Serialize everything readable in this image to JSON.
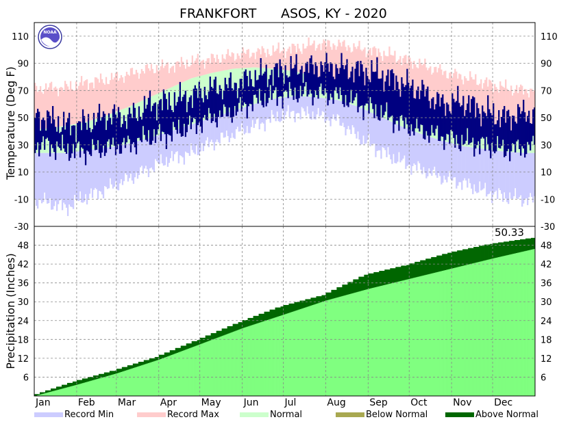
{
  "chart_data": {
    "type": "area",
    "title_station": "FRANKFORT",
    "title_rest": "ASOS, KY - 2020",
    "months": [
      "Jan",
      "Feb",
      "Mar",
      "Apr",
      "May",
      "Jun",
      "Jul",
      "Aug",
      "Sep",
      "Oct",
      "Nov",
      "Dec"
    ],
    "temperature": {
      "ylabel": "Temperature (Deg F)",
      "yticks": [
        110,
        90,
        70,
        50,
        30,
        10,
        -10,
        -30
      ],
      "ylim": [
        -30,
        120
      ],
      "normal_high": [
        42,
        44,
        47,
        52,
        58,
        65,
        72,
        79,
        83,
        86,
        87,
        86,
        84,
        80,
        76,
        70,
        63,
        56,
        50,
        46,
        43,
        41,
        40,
        41
      ],
      "normal_low": [
        24,
        24,
        26,
        28,
        31,
        35,
        40,
        45,
        50,
        55,
        60,
        64,
        66,
        65,
        63,
        58,
        51,
        44,
        38,
        33,
        29,
        27,
        25,
        24
      ],
      "record_max": [
        72,
        72,
        76,
        78,
        82,
        86,
        88,
        91,
        93,
        96,
        98,
        99,
        101,
        104,
        104,
        101,
        98,
        94,
        89,
        84,
        80,
        76,
        72,
        70
      ],
      "record_min": [
        -12,
        -16,
        -8,
        -2,
        5,
        13,
        20,
        24,
        32,
        38,
        44,
        50,
        54,
        52,
        48,
        36,
        26,
        18,
        12,
        6,
        2,
        -4,
        -8,
        -10
      ],
      "observed_high": [
        50,
        44,
        46,
        52,
        50,
        60,
        62,
        66,
        72,
        74,
        80,
        84,
        86,
        88,
        87,
        85,
        82,
        76,
        70,
        60,
        62,
        55,
        50,
        54
      ],
      "observed_low": [
        30,
        26,
        25,
        28,
        30,
        36,
        38,
        44,
        50,
        54,
        62,
        66,
        68,
        68,
        66,
        60,
        54,
        46,
        40,
        36,
        32,
        30,
        26,
        28
      ]
    },
    "precipitation": {
      "ylabel": "Precipitation (Inches)",
      "yticks": [
        48,
        42,
        36,
        30,
        24,
        18,
        12,
        6
      ],
      "ylim": [
        0,
        54
      ],
      "total_label": "50.33",
      "cumulative_normal_monthly": [
        0,
        3.6,
        7.2,
        11.6,
        16.5,
        21.6,
        25.9,
        30.4,
        34.1,
        37.3,
        40.6,
        43.8,
        46.9
      ],
      "cumulative_observed_monthly": [
        0,
        4.6,
        8.1,
        12.4,
        17.8,
        23.5,
        28.5,
        32.1,
        38.6,
        41.7,
        45.6,
        48.4,
        50.33
      ]
    },
    "legend": [
      {
        "label": "Record Min",
        "color": "#ccccff"
      },
      {
        "label": "Record Max",
        "color": "#ffcccc"
      },
      {
        "label": "Normal",
        "color": "#ccffcc"
      },
      {
        "label": "Below Normal",
        "color": "#a8a850"
      },
      {
        "label": "Above Normal",
        "color": "#006600"
      }
    ],
    "colors": {
      "observed": "#000080",
      "precip_normal": "#80ff80",
      "precip_above": "#006600"
    }
  }
}
